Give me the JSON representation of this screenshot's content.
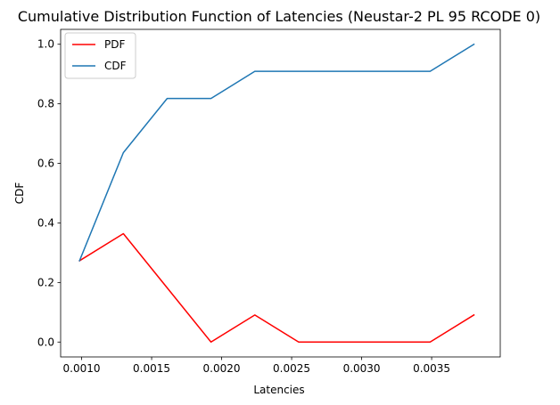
{
  "chart_data": {
    "type": "line",
    "title": "Cumulative Distribution Function of Latencies (Neustar-2 PL 95 RCODE 0)",
    "xlabel": "Latencies",
    "ylabel": "CDF",
    "xlim": [
      0.00085,
      0.00399
    ],
    "ylim": [
      -0.05,
      1.05
    ],
    "xticks": [
      0.001,
      0.0015,
      0.002,
      0.0025,
      0.003,
      0.0035
    ],
    "xtick_labels": [
      "0.0010",
      "0.0015",
      "0.0020",
      "0.0025",
      "0.0030",
      "0.0035"
    ],
    "yticks": [
      0.0,
      0.2,
      0.4,
      0.6,
      0.8,
      1.0
    ],
    "ytick_labels": [
      "0.0",
      "0.2",
      "0.4",
      "0.6",
      "0.8",
      "1.0"
    ],
    "grid": false,
    "legend_position": "top-left",
    "x": [
      0.000985,
      0.001298,
      0.001611,
      0.001924,
      0.002237,
      0.00255,
      0.002863,
      0.003176,
      0.003489,
      0.003802
    ],
    "series": [
      {
        "name": "PDF",
        "color": "#ff0000",
        "values": [
          0.273,
          0.364,
          0.182,
          0.0,
          0.091,
          0.0,
          0.0,
          0.0,
          0.0,
          0.091
        ]
      },
      {
        "name": "CDF",
        "color": "#1f77b4",
        "values": [
          0.273,
          0.636,
          0.818,
          0.818,
          0.909,
          0.909,
          0.909,
          0.909,
          0.909,
          1.0
        ]
      }
    ]
  }
}
